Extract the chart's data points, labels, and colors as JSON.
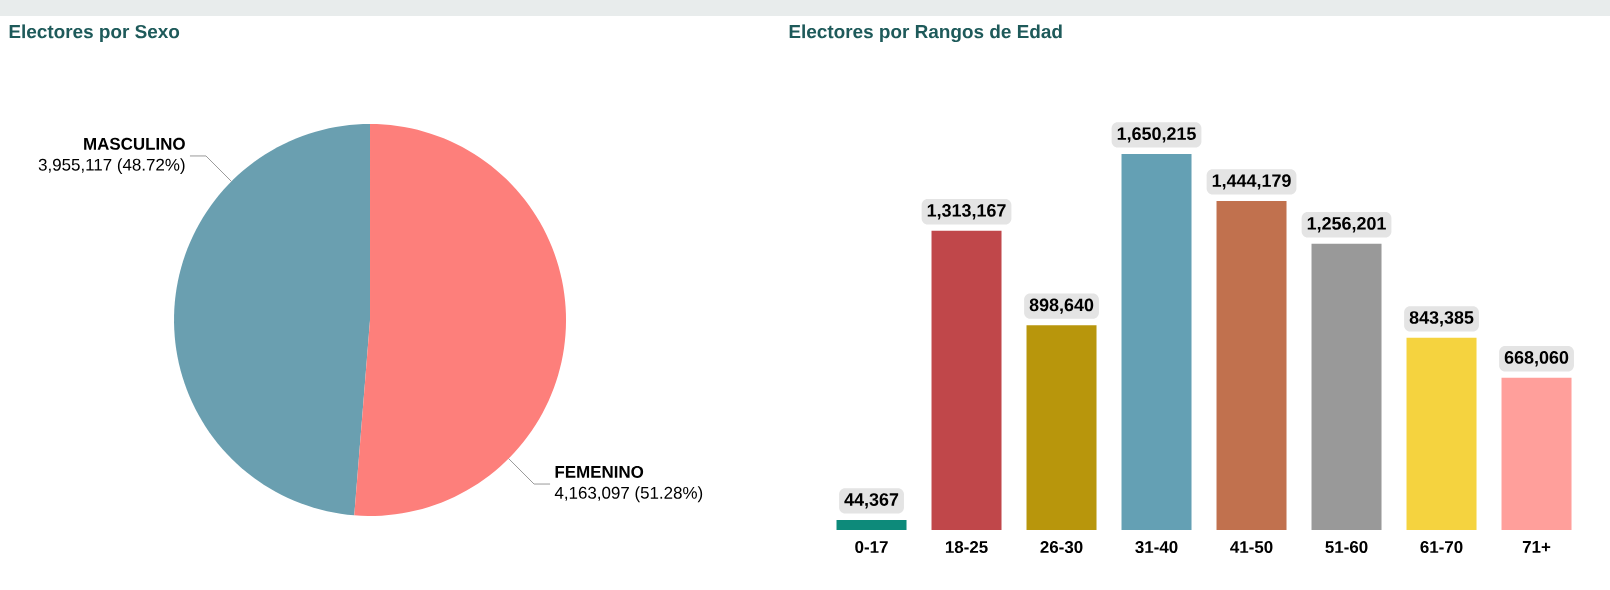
{
  "chart_data": [
    {
      "type": "pie",
      "title": "Electores por Sexo",
      "categories": [
        "MASCULINO",
        "FEMENINO"
      ],
      "values": [
        3955117,
        4163097
      ],
      "colors": [
        "#6a9fb0",
        "#fd7f7b"
      ],
      "value_labels": [
        "3,955,117 (48.72%)",
        "4,163,097 (51.28%)"
      ]
    },
    {
      "type": "bar",
      "title": "Electores por Rangos de Edad",
      "categories": [
        "0-17",
        "18-25",
        "26-30",
        "31-40",
        "41-50",
        "51-60",
        "61-70",
        "71+"
      ],
      "values": [
        44367,
        1313167,
        898640,
        1650215,
        1444179,
        1256201,
        843385,
        668060
      ],
      "colors": [
        "#0d8a7a",
        "#c0474a",
        "#b8960c",
        "#64a0b4",
        "#c1714e",
        "#999999",
        "#f5d33f",
        "#ff9f9b"
      ],
      "value_labels": [
        "44,367",
        "1,313,167",
        "898,640",
        "1,650,215",
        "1,444,179",
        "1,256,201",
        "843,385",
        "668,060"
      ]
    }
  ]
}
